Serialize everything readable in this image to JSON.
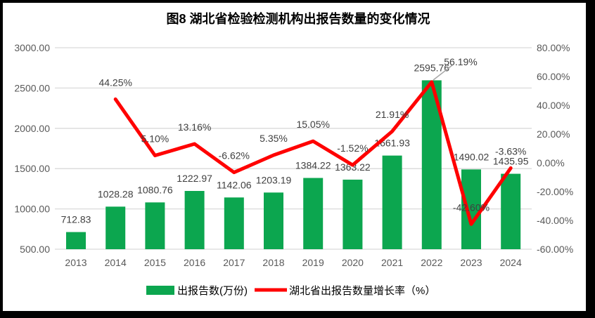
{
  "title": "图8  湖北省检验检测机构出报告数量的变化情况",
  "legend": {
    "bar_label": "出报告数(万份)",
    "line_label": "湖北省出报告数量增长率（%）"
  },
  "colors": {
    "bar": "#0CA64F",
    "line": "#FF0000",
    "grid": "#D9D9D9",
    "axis_text": "#595959",
    "data_label": "#3F3F3F",
    "leader_line": "#A6A6A6",
    "title_text": "#000000",
    "frame": "#000000",
    "canvas": "#FFFFFF"
  },
  "chart_data": {
    "type": "combo-bar-line",
    "title": "图8  湖北省检验检测机构出报告数量的变化情况",
    "categories": [
      "2013",
      "2014",
      "2015",
      "2016",
      "2017",
      "2018",
      "2019",
      "2020",
      "2021",
      "2022",
      "2023",
      "2024"
    ],
    "series": [
      {
        "name": "出报告数(万份)",
        "type": "bar",
        "axis": "left",
        "values": [
          712.83,
          1028.28,
          1080.76,
          1222.97,
          1142.06,
          1203.19,
          1384.22,
          1363.22,
          1661.93,
          2595.76,
          1490.02,
          1435.95
        ],
        "labels": [
          "712.83",
          "1028.28",
          "1080.76",
          "1222.97",
          "1142.06",
          "1203.19",
          "1384.22",
          "1363.22",
          "1661.93",
          "2595.76",
          "1490.02",
          "1435.95"
        ]
      },
      {
        "name": "湖北省出报告数量增长率（%）",
        "type": "line",
        "axis": "right",
        "values": [
          null,
          44.25,
          5.1,
          13.16,
          -6.62,
          5.35,
          15.05,
          -1.52,
          21.91,
          56.19,
          -42.6,
          -3.63
        ],
        "labels": [
          null,
          "44.25%",
          "5.10%",
          "13.16%",
          "-6.62%",
          "5.35%",
          "15.05%",
          "-1.52%",
          "21.91%",
          "56.19%",
          "-42.60%",
          "-3.63%"
        ]
      }
    ],
    "left_axis": {
      "min": 500,
      "max": 3000,
      "step": 500,
      "tick_labels": [
        "500.00",
        "1000.00",
        "1500.00",
        "2000.00",
        "2500.00",
        "3000.00"
      ]
    },
    "right_axis": {
      "min": -60,
      "max": 80,
      "step": 20,
      "tick_labels": [
        "-60.00%",
        "-40.00%",
        "-20.00%",
        "0.00%",
        "20.00%",
        "40.00%",
        "60.00%",
        "80.00%"
      ]
    },
    "gridlines": "horizontal",
    "legend_position": "bottom"
  }
}
